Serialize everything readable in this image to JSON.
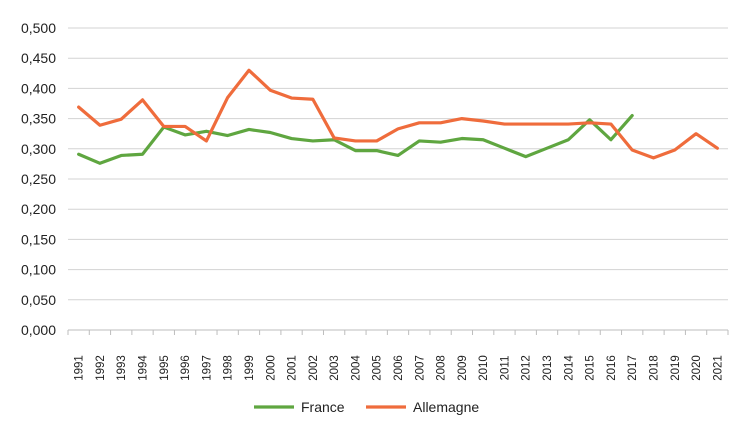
{
  "chart_data": {
    "type": "line",
    "x": [
      "1991",
      "1992",
      "1993",
      "1994",
      "1995",
      "1996",
      "1997",
      "1998",
      "1999",
      "2000",
      "2001",
      "2002",
      "2003",
      "2004",
      "2005",
      "2006",
      "2007",
      "2008",
      "2009",
      "2010",
      "2011",
      "2012",
      "2013",
      "2014",
      "2015",
      "2016",
      "2017",
      "2018",
      "2019",
      "2020",
      "2021"
    ],
    "y_ticks": [
      "0,000",
      "0,050",
      "0,100",
      "0,150",
      "0,200",
      "0,250",
      "0,300",
      "0,350",
      "0,400",
      "0,450",
      "0,500"
    ],
    "ylim": [
      0,
      0.5
    ],
    "grid": true,
    "legend_position": "bottom",
    "series": [
      {
        "name": "France",
        "color": "#5fa640",
        "values": [
          0.291,
          0.276,
          0.289,
          0.291,
          0.336,
          0.323,
          0.329,
          0.322,
          0.332,
          0.327,
          0.317,
          0.313,
          0.315,
          0.297,
          0.297,
          0.289,
          0.313,
          0.311,
          0.317,
          0.315,
          0.301,
          0.287,
          0.301,
          0.315,
          0.348,
          0.315,
          0.355,
          null,
          null,
          null,
          null
        ]
      },
      {
        "name": "Allemagne",
        "color": "#ef6c3c",
        "values": [
          0.369,
          0.339,
          0.349,
          0.381,
          0.337,
          0.337,
          0.313,
          0.385,
          0.43,
          0.397,
          0.384,
          0.382,
          0.318,
          0.313,
          0.313,
          0.333,
          0.343,
          0.343,
          0.35,
          0.346,
          0.341,
          0.341,
          0.341,
          0.341,
          0.343,
          0.341,
          0.298,
          0.285,
          0.298,
          0.325,
          0.301
        ]
      }
    ]
  }
}
